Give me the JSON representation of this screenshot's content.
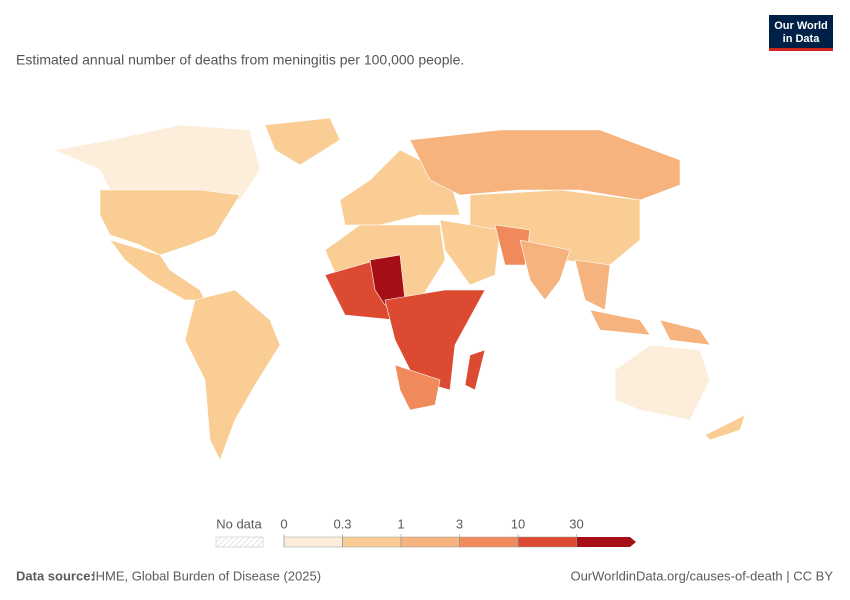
{
  "header": {
    "title": "Estimated annual number of deaths from meningitis per 100,000 people.",
    "logo": [
      "Our World",
      "in Data"
    ]
  },
  "legend": {
    "no_data_label": "No data",
    "ticks": [
      0,
      0.3,
      1,
      3,
      10,
      30
    ],
    "colors": [
      "#fdeedb",
      "#f9cd93",
      "#f6b37e",
      "#f08a5a",
      "#dd4a32",
      "#a50f15"
    ]
  },
  "footer": {
    "source_label": "Data source:",
    "source": "IHME, Global Burden of Disease (2025)",
    "url": "OurWorldinData.org/causes-of-death | CC BY"
  }
}
